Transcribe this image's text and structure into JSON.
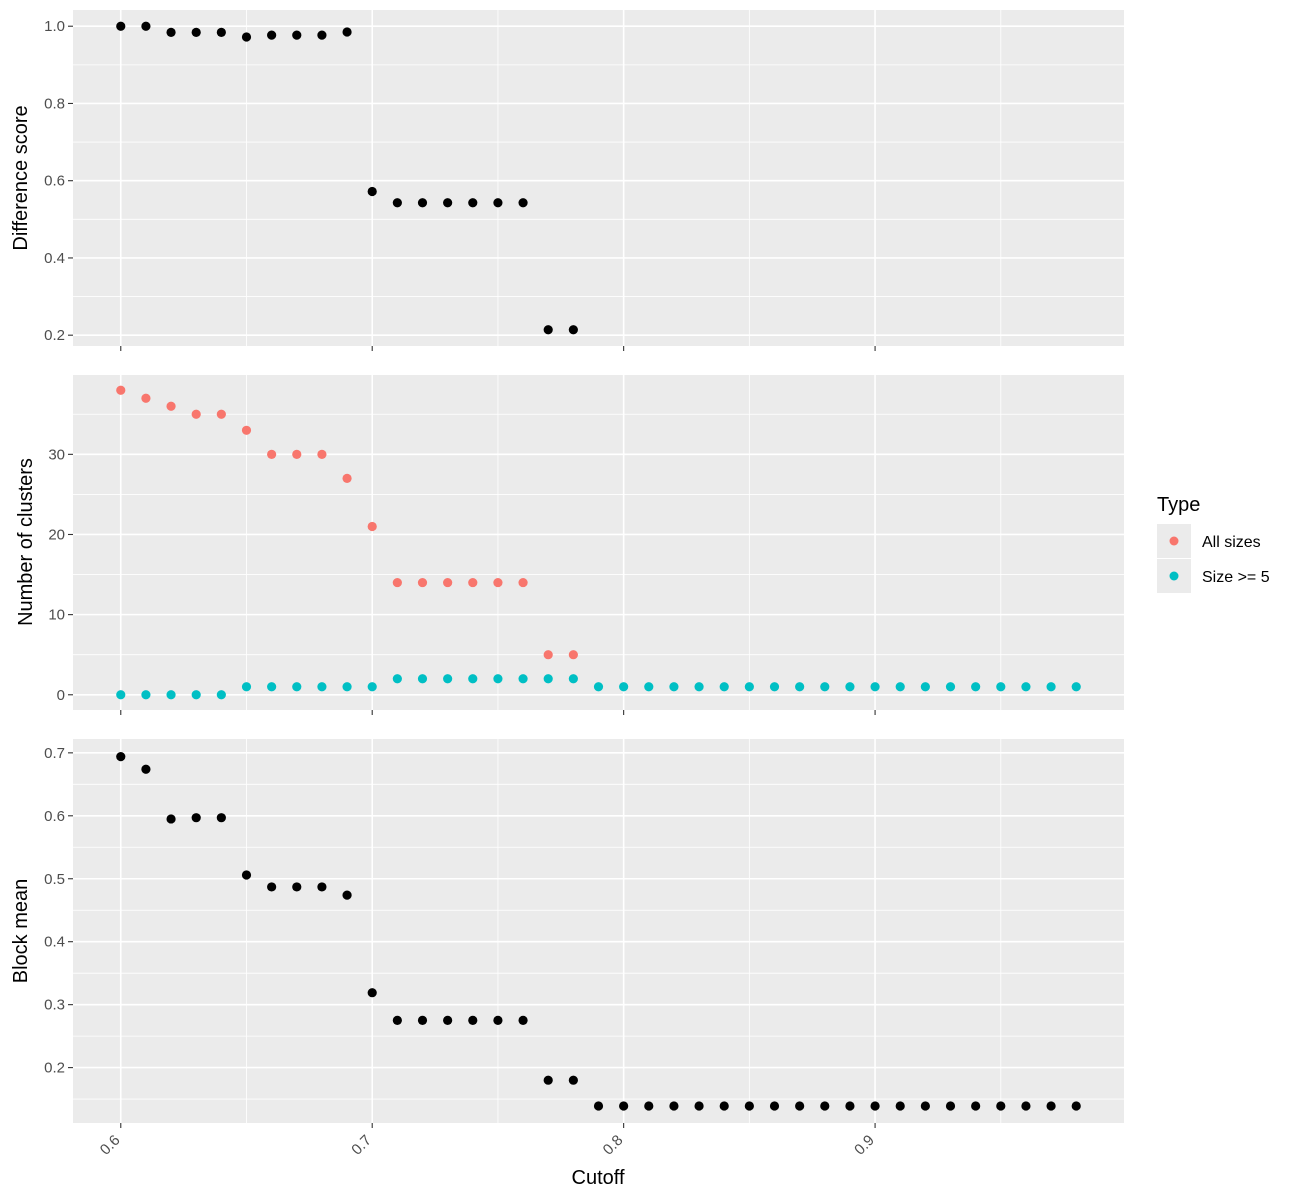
{
  "chart_data": [
    {
      "type": "scatter",
      "ylabel": "Difference score",
      "xlim": [
        0.581,
        0.999
      ],
      "ylim": [
        0.172,
        1.042
      ],
      "y_ticks": [
        "0.2",
        "0.4",
        "0.6",
        "0.8",
        "1.0"
      ],
      "grid": true,
      "series": [
        {
          "color": "#000000",
          "points": [
            [
              0.6,
              1.0
            ],
            [
              0.61,
              1.0
            ],
            [
              0.62,
              0.984
            ],
            [
              0.63,
              0.984
            ],
            [
              0.64,
              0.984
            ],
            [
              0.65,
              0.972
            ],
            [
              0.66,
              0.977
            ],
            [
              0.67,
              0.977
            ],
            [
              0.68,
              0.977
            ],
            [
              0.69,
              0.985
            ],
            [
              0.7,
              0.572
            ],
            [
              0.71,
              0.543
            ],
            [
              0.72,
              0.543
            ],
            [
              0.73,
              0.543
            ],
            [
              0.74,
              0.543
            ],
            [
              0.75,
              0.543
            ],
            [
              0.76,
              0.543
            ],
            [
              0.77,
              0.214
            ],
            [
              0.78,
              0.214
            ]
          ]
        }
      ]
    },
    {
      "type": "scatter",
      "ylabel": "Number of clusters",
      "xlim": [
        0.581,
        0.999
      ],
      "ylim": [
        -1.9,
        39.9
      ],
      "y_ticks": [
        "0",
        "10",
        "20",
        "30"
      ],
      "grid": true,
      "legend": {
        "title": "Type",
        "position": "right",
        "entries": [
          {
            "label": "All sizes",
            "color": "#f8766d"
          },
          {
            "label": "Size >= 5",
            "color": "#00bfc4"
          }
        ]
      },
      "series": [
        {
          "color": "#f8766d",
          "points": [
            [
              0.6,
              38
            ],
            [
              0.61,
              37
            ],
            [
              0.62,
              36
            ],
            [
              0.63,
              35
            ],
            [
              0.64,
              35
            ],
            [
              0.65,
              33
            ],
            [
              0.66,
              30
            ],
            [
              0.67,
              30
            ],
            [
              0.68,
              30
            ],
            [
              0.69,
              27
            ],
            [
              0.7,
              21
            ],
            [
              0.71,
              14
            ],
            [
              0.72,
              14
            ],
            [
              0.73,
              14
            ],
            [
              0.74,
              14
            ],
            [
              0.75,
              14
            ],
            [
              0.76,
              14
            ],
            [
              0.77,
              5
            ],
            [
              0.78,
              5
            ]
          ]
        },
        {
          "color": "#00bfc4",
          "points": [
            [
              0.6,
              0
            ],
            [
              0.61,
              0
            ],
            [
              0.62,
              0
            ],
            [
              0.63,
              0
            ],
            [
              0.64,
              0
            ],
            [
              0.65,
              1
            ],
            [
              0.66,
              1
            ],
            [
              0.67,
              1
            ],
            [
              0.68,
              1
            ],
            [
              0.69,
              1
            ],
            [
              0.7,
              1
            ],
            [
              0.71,
              2
            ],
            [
              0.72,
              2
            ],
            [
              0.73,
              2
            ],
            [
              0.74,
              2
            ],
            [
              0.75,
              2
            ],
            [
              0.76,
              2
            ],
            [
              0.77,
              2
            ],
            [
              0.78,
              2
            ],
            [
              0.79,
              1
            ],
            [
              0.8,
              1
            ],
            [
              0.81,
              1
            ],
            [
              0.82,
              1
            ],
            [
              0.83,
              1
            ],
            [
              0.84,
              1
            ],
            [
              0.85,
              1
            ],
            [
              0.86,
              1
            ],
            [
              0.87,
              1
            ],
            [
              0.88,
              1
            ],
            [
              0.89,
              1
            ],
            [
              0.9,
              1
            ],
            [
              0.91,
              1
            ],
            [
              0.92,
              1
            ],
            [
              0.93,
              1
            ],
            [
              0.94,
              1
            ],
            [
              0.95,
              1
            ],
            [
              0.96,
              1
            ],
            [
              0.97,
              1
            ],
            [
              0.98,
              1
            ]
          ]
        }
      ]
    },
    {
      "type": "scatter",
      "ylabel": "Block mean",
      "xlabel": "Cutoff",
      "xlim": [
        0.581,
        0.999
      ],
      "ylim": [
        0.112,
        0.722
      ],
      "y_ticks": [
        "0.2",
        "0.3",
        "0.4",
        "0.5",
        "0.6",
        "0.7"
      ],
      "x_ticks": [
        "0.6",
        "0.7",
        "0.8",
        "0.9"
      ],
      "grid": true,
      "series": [
        {
          "color": "#000000",
          "points": [
            [
              0.6,
              0.694
            ],
            [
              0.61,
              0.674
            ],
            [
              0.62,
              0.595
            ],
            [
              0.63,
              0.597
            ],
            [
              0.64,
              0.597
            ],
            [
              0.65,
              0.506
            ],
            [
              0.66,
              0.487
            ],
            [
              0.67,
              0.487
            ],
            [
              0.68,
              0.487
            ],
            [
              0.69,
              0.474
            ],
            [
              0.7,
              0.319
            ],
            [
              0.71,
              0.275
            ],
            [
              0.72,
              0.275
            ],
            [
              0.73,
              0.275
            ],
            [
              0.74,
              0.275
            ],
            [
              0.75,
              0.275
            ],
            [
              0.76,
              0.275
            ],
            [
              0.77,
              0.18
            ],
            [
              0.78,
              0.18
            ],
            [
              0.79,
              0.139
            ],
            [
              0.8,
              0.139
            ],
            [
              0.81,
              0.139
            ],
            [
              0.82,
              0.139
            ],
            [
              0.83,
              0.139
            ],
            [
              0.84,
              0.139
            ],
            [
              0.85,
              0.139
            ],
            [
              0.86,
              0.139
            ],
            [
              0.87,
              0.139
            ],
            [
              0.88,
              0.139
            ],
            [
              0.89,
              0.139
            ],
            [
              0.9,
              0.139
            ],
            [
              0.91,
              0.139
            ],
            [
              0.92,
              0.139
            ],
            [
              0.93,
              0.139
            ],
            [
              0.94,
              0.139
            ],
            [
              0.95,
              0.139
            ],
            [
              0.96,
              0.139
            ],
            [
              0.97,
              0.139
            ],
            [
              0.98,
              0.139
            ]
          ]
        }
      ]
    }
  ]
}
